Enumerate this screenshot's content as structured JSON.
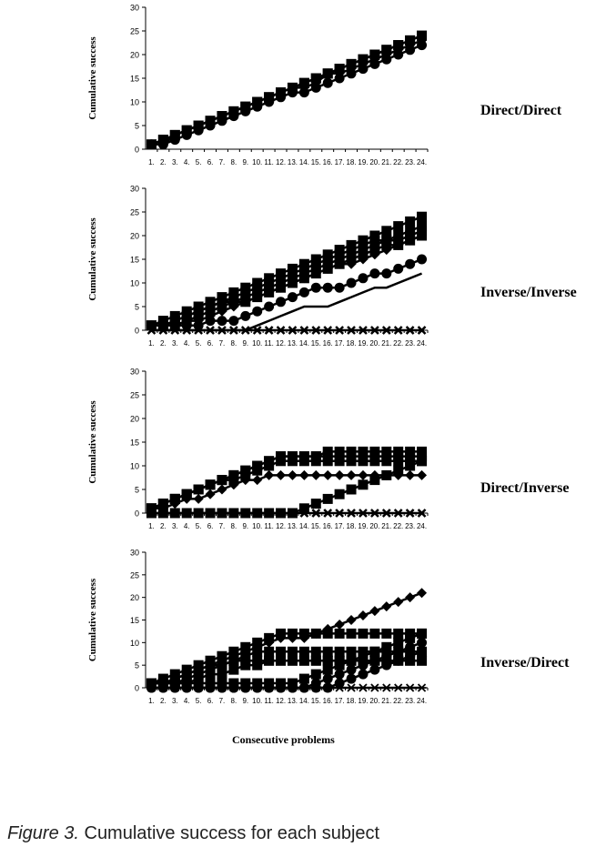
{
  "caption": {
    "figure": "Figure 3.",
    "text": " Cumulative success for each subject"
  },
  "xlabel": "Consecutive problems",
  "chart_data": [
    {
      "type": "line",
      "panel_label": "Direct/Direct",
      "ylabel": "Cumulative success",
      "ylim": [
        0,
        30
      ],
      "yticks": [
        0,
        5,
        10,
        15,
        20,
        25,
        30
      ],
      "categories": [
        "1.",
        "2.",
        "3.",
        "4.",
        "5.",
        "6.",
        "7.",
        "8.",
        "9.",
        "10.",
        "11.",
        "12.",
        "13.",
        "14.",
        "15.",
        "16.",
        "17.",
        "18.",
        "19.",
        "20.",
        "21.",
        "22.",
        "23.",
        "24."
      ],
      "grid": false,
      "series": [
        {
          "marker": "square",
          "values": [
            1,
            2,
            3,
            4,
            5,
            6,
            7,
            8,
            9,
            10,
            11,
            12,
            13,
            14,
            15,
            16,
            17,
            18,
            19,
            20,
            21,
            22,
            23,
            24
          ]
        },
        {
          "marker": "square",
          "values": [
            1,
            2,
            3,
            4,
            5,
            6,
            7,
            8,
            9,
            10,
            11,
            12,
            13,
            14,
            15,
            16,
            17,
            18,
            19,
            20,
            21,
            22,
            23,
            24
          ]
        },
        {
          "marker": "diamond",
          "values": [
            1,
            1,
            3,
            4,
            5,
            6,
            7,
            8,
            9,
            10,
            11,
            12,
            13,
            13,
            14,
            16,
            16,
            17,
            18,
            19,
            20,
            21,
            22,
            23
          ]
        },
        {
          "marker": "circle",
          "values": [
            1,
            1,
            2,
            3,
            4,
            5,
            6,
            7,
            8,
            9,
            10,
            11,
            12,
            12,
            13,
            14,
            15,
            16,
            17,
            18,
            19,
            20,
            21,
            22
          ]
        }
      ]
    },
    {
      "type": "line",
      "panel_label": "Inverse/Inverse",
      "ylabel": "Cumulative success",
      "ylim": [
        0,
        30
      ],
      "yticks": [
        0,
        5,
        10,
        15,
        20,
        25,
        30
      ],
      "categories": [
        "1.",
        "2.",
        "3.",
        "4.",
        "5.",
        "6.",
        "7.",
        "8.",
        "9.",
        "10.",
        "11.",
        "12.",
        "13.",
        "14.",
        "15.",
        "16.",
        "17.",
        "18.",
        "19.",
        "20.",
        "21.",
        "22.",
        "23.",
        "24."
      ],
      "grid": false,
      "series": [
        {
          "marker": "square",
          "values": [
            1,
            2,
            3,
            4,
            5,
            6,
            7,
            8,
            9,
            10,
            11,
            12,
            13,
            14,
            15,
            16,
            17,
            18,
            19,
            20,
            21,
            22,
            23,
            24
          ]
        },
        {
          "marker": "square",
          "values": [
            1,
            1,
            2,
            3,
            4,
            5,
            6,
            7,
            8,
            9,
            10,
            11,
            12,
            13,
            14,
            15,
            16,
            17,
            18,
            19,
            19,
            20,
            21,
            22
          ]
        },
        {
          "marker": "square",
          "values": [
            1,
            1,
            2,
            3,
            4,
            5,
            6,
            6,
            7,
            8,
            9,
            10,
            11,
            12,
            13,
            14,
            15,
            16,
            17,
            18,
            19,
            19,
            20,
            21
          ]
        },
        {
          "marker": "square",
          "values": [
            1,
            1,
            1,
            2,
            3,
            4,
            5,
            6,
            6,
            7,
            8,
            9,
            10,
            11,
            12,
            13,
            14,
            15,
            16,
            17,
            18,
            18,
            19,
            20
          ]
        },
        {
          "marker": "diamond",
          "values": [
            1,
            1,
            1,
            2,
            2,
            3,
            4,
            5,
            6,
            7,
            8,
            9,
            10,
            11,
            12,
            13,
            14,
            14,
            15,
            16,
            17,
            18,
            19,
            20
          ]
        },
        {
          "marker": "circle",
          "values": [
            1,
            1,
            1,
            1,
            1,
            2,
            2,
            2,
            3,
            4,
            5,
            6,
            7,
            8,
            9,
            9,
            9,
            10,
            11,
            12,
            12,
            13,
            14,
            15
          ]
        },
        {
          "marker": "none",
          "values": [
            0,
            0,
            0,
            0,
            0,
            0,
            0,
            0,
            0,
            1,
            2,
            3,
            4,
            5,
            5,
            5,
            6,
            7,
            8,
            9,
            9,
            10,
            11,
            12
          ]
        },
        {
          "marker": "x",
          "values": [
            0,
            0,
            0,
            0,
            0,
            0,
            0,
            0,
            0,
            0,
            0,
            0,
            0,
            0,
            0,
            0,
            0,
            0,
            0,
            0,
            0,
            0,
            0,
            0
          ]
        }
      ]
    },
    {
      "type": "line",
      "panel_label": "Direct/Inverse",
      "ylabel": "Cumulative success",
      "ylim": [
        0,
        30
      ],
      "yticks": [
        0,
        5,
        10,
        15,
        20,
        25,
        30
      ],
      "categories": [
        "1.",
        "2.",
        "3.",
        "4.",
        "5.",
        "6.",
        "7.",
        "8.",
        "9.",
        "10.",
        "11.",
        "12.",
        "13.",
        "14.",
        "15.",
        "16.",
        "17.",
        "18.",
        "19.",
        "20.",
        "21.",
        "22.",
        "23.",
        "24."
      ],
      "grid": false,
      "series": [
        {
          "marker": "square",
          "values": [
            1,
            2,
            3,
            4,
            5,
            6,
            7,
            8,
            9,
            10,
            11,
            12,
            12,
            12,
            12,
            13,
            13,
            13,
            13,
            13,
            13,
            13,
            13,
            13
          ]
        },
        {
          "marker": "square",
          "values": [
            1,
            2,
            3,
            4,
            5,
            6,
            7,
            8,
            9,
            10,
            11,
            12,
            12,
            12,
            12,
            12,
            12,
            12,
            12,
            12,
            12,
            12,
            12,
            12
          ]
        },
        {
          "marker": "square",
          "values": [
            1,
            2,
            3,
            4,
            5,
            6,
            7,
            7,
            8,
            9,
            10,
            11,
            11,
            11,
            11,
            11,
            11,
            11,
            11,
            11,
            11,
            11,
            11,
            11
          ]
        },
        {
          "marker": "diamond",
          "values": [
            1,
            1,
            2,
            3,
            3,
            4,
            5,
            6,
            7,
            7,
            8,
            8,
            8,
            8,
            8,
            8,
            8,
            8,
            8,
            8,
            8,
            8,
            8,
            8
          ]
        },
        {
          "marker": "square",
          "values": [
            0,
            0,
            0,
            0,
            0,
            0,
            0,
            0,
            0,
            0,
            0,
            0,
            0,
            1,
            2,
            3,
            4,
            5,
            6,
            7,
            8,
            9,
            10,
            11
          ]
        },
        {
          "marker": "x",
          "values": [
            0,
            0,
            0,
            0,
            0,
            0,
            0,
            0,
            0,
            0,
            0,
            0,
            0,
            0,
            0,
            0,
            0,
            0,
            0,
            0,
            0,
            0,
            0,
            0
          ]
        }
      ]
    },
    {
      "type": "line",
      "panel_label": "Inverse/Direct",
      "ylabel": "Cumulative success",
      "ylim": [
        0,
        30
      ],
      "yticks": [
        0,
        5,
        10,
        15,
        20,
        25,
        30
      ],
      "categories": [
        "1.",
        "2.",
        "3.",
        "4.",
        "5.",
        "6.",
        "7.",
        "8.",
        "9.",
        "10.",
        "11.",
        "12.",
        "13.",
        "14.",
        "15.",
        "16.",
        "17.",
        "18.",
        "19.",
        "20.",
        "21.",
        "22.",
        "23.",
        "24."
      ],
      "grid": false,
      "series": [
        {
          "marker": "square",
          "values": [
            1,
            2,
            3,
            4,
            5,
            6,
            7,
            8,
            9,
            10,
            11,
            12,
            12,
            12,
            12,
            12,
            12,
            12,
            12,
            12,
            12,
            12,
            12,
            12
          ]
        },
        {
          "marker": "diamond",
          "values": [
            1,
            1,
            2,
            3,
            4,
            5,
            6,
            7,
            8,
            9,
            10,
            11,
            11,
            11,
            12,
            13,
            14,
            15,
            16,
            17,
            18,
            19,
            20,
            21
          ]
        },
        {
          "marker": "square",
          "values": [
            1,
            1,
            2,
            3,
            4,
            5,
            5,
            6,
            7,
            8,
            8,
            8,
            8,
            8,
            8,
            8,
            8,
            8,
            8,
            8,
            8,
            8,
            8,
            8
          ]
        },
        {
          "marker": "square",
          "values": [
            1,
            1,
            1,
            2,
            3,
            4,
            5,
            6,
            6,
            6,
            6,
            6,
            6,
            6,
            6,
            6,
            6,
            6,
            6,
            6,
            6,
            6,
            6,
            6
          ]
        },
        {
          "marker": "square",
          "values": [
            1,
            1,
            1,
            1,
            2,
            3,
            3,
            4,
            5,
            5,
            6,
            6,
            6,
            6,
            6,
            6,
            6,
            6,
            6,
            6,
            6,
            6,
            6,
            6
          ]
        },
        {
          "marker": "square",
          "values": [
            1,
            1,
            1,
            1,
            1,
            1,
            1,
            1,
            1,
            1,
            1,
            1,
            1,
            2,
            3,
            4,
            5,
            6,
            7,
            8,
            9,
            10,
            11,
            12
          ]
        },
        {
          "marker": "circle",
          "values": [
            0,
            0,
            0,
            0,
            0,
            0,
            0,
            0,
            0,
            0,
            0,
            0,
            0,
            0,
            1,
            2,
            3,
            4,
            5,
            6,
            7,
            8,
            9,
            10
          ]
        },
        {
          "marker": "circle",
          "values": [
            0,
            0,
            0,
            0,
            0,
            0,
            0,
            0,
            0,
            0,
            0,
            0,
            0,
            0,
            0,
            0,
            1,
            2,
            3,
            4,
            5,
            6,
            7,
            8
          ]
        },
        {
          "marker": "asterisk",
          "values": [
            0,
            0,
            0,
            0,
            0,
            0,
            0,
            0,
            0,
            0,
            0,
            0,
            0,
            0,
            0,
            0,
            0,
            0,
            0,
            0,
            0,
            0,
            0,
            0
          ]
        }
      ]
    }
  ]
}
